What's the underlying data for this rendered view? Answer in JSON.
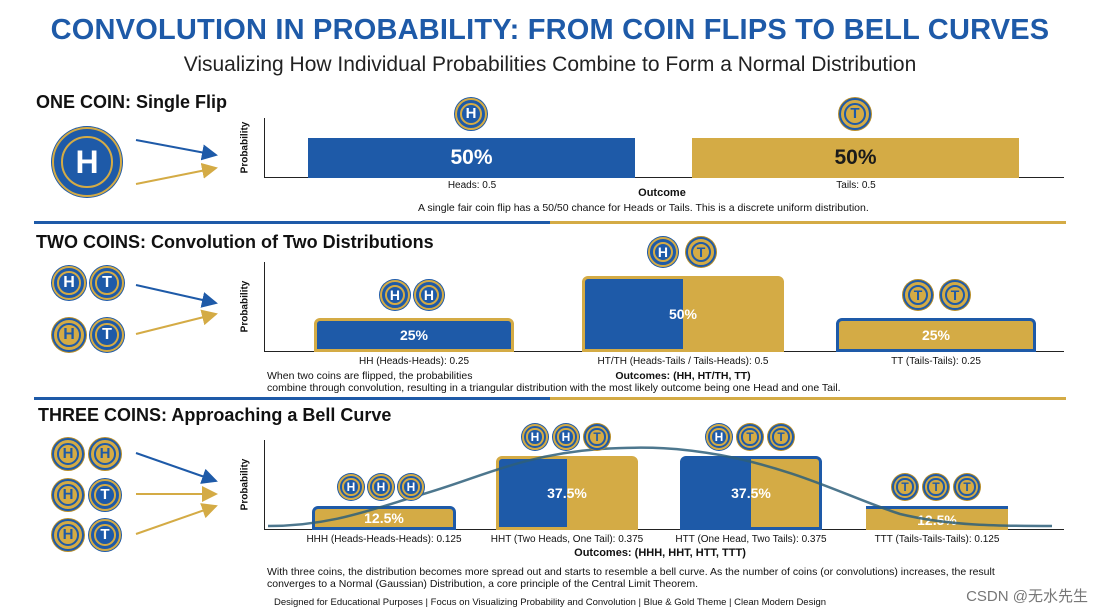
{
  "header": {
    "title": "CONVOLUTION IN PROBABILITY: FROM COIN FLIPS TO BELL CURVES",
    "subtitle": "Visualizing How Individual Probabilities Combine to Form a Normal Distribution"
  },
  "coin_letters": {
    "heads": "H",
    "tails": "T"
  },
  "colors": {
    "blue": "#1e5aa8",
    "gold": "#d4ab45"
  },
  "axis_label": "Probability",
  "section_one": {
    "title": "ONE COIN: Single Flip",
    "bars": [
      {
        "value_label": "50%",
        "caption": "Heads: 0.5"
      },
      {
        "value_label": "50%",
        "caption": "Tails: 0.5"
      }
    ],
    "xlabel": "Outcome",
    "description": "A single fair coin flip has a 50/50 chance for Heads or Tails. This is a discrete uniform distribution."
  },
  "section_two": {
    "title": "TWO COINS: Convolution of Two Distributions",
    "bars": [
      {
        "value_label": "25%",
        "caption": "HH (Heads-Heads): 0.25"
      },
      {
        "value_label": "50%",
        "caption": "HT/TH (Heads-Tails / Tails-Heads): 0.5"
      },
      {
        "value_label": "25%",
        "caption": "TT (Tails-Tails): 0.25"
      }
    ],
    "xlabel": "Outcomes: (HH, HT/TH, TT)",
    "description_line1": "When two coins are flipped, the probabilities",
    "description_line2": "combine through convolution, resulting in a triangular distribution with the most likely outcome being one Head and one Tail."
  },
  "section_three": {
    "title": "THREE COINS: Approaching a Bell Curve",
    "bars": [
      {
        "value_label": "12.5%",
        "caption": "HHH (Heads-Heads-Heads): 0.125"
      },
      {
        "value_label": "37.5%",
        "caption": "HHT (Two Heads, One Tail): 0.375"
      },
      {
        "value_label": "37.5%",
        "caption": "HTT (One Head, Two Tails): 0.375"
      },
      {
        "value_label": "12.5%",
        "caption": "TTT (Tails-Tails-Tails): 0.125"
      }
    ],
    "xlabel": "Outcomes: (HHH, HHT, HTT, TTT)",
    "description_line1": "With three coins, the distribution becomes more spread out and starts to resemble a bell curve. As the number of coins (or convolutions) increases, the result",
    "description_line2": "converges to a Normal (Gaussian) Distribution, a core principle of the Central Limit Theorem."
  },
  "footer": "Designed for Educational Purposes | Focus on Visualizing Probability and Convolution | Blue & Gold Theme | Clean Modern Design",
  "watermark": "CSDN @无水先生",
  "chart_data": [
    {
      "type": "bar",
      "title": "ONE COIN: Single Flip",
      "categories": [
        "Heads",
        "Tails"
      ],
      "values": [
        0.5,
        0.5
      ],
      "xlabel": "Outcome",
      "ylabel": "Probability"
    },
    {
      "type": "bar",
      "title": "TWO COINS: Convolution of Two Distributions",
      "categories": [
        "HH",
        "HT/TH",
        "TT"
      ],
      "values": [
        0.25,
        0.5,
        0.25
      ],
      "xlabel": "Outcomes: (HH, HT/TH, TT)",
      "ylabel": "Probability"
    },
    {
      "type": "bar",
      "title": "THREE COINS: Approaching a Bell Curve",
      "categories": [
        "HHH",
        "HHT",
        "HTT",
        "TTT"
      ],
      "values": [
        0.125,
        0.375,
        0.375,
        0.125
      ],
      "xlabel": "Outcomes: (HHH, HHT, HTT, TTT)",
      "ylabel": "Probability"
    }
  ]
}
